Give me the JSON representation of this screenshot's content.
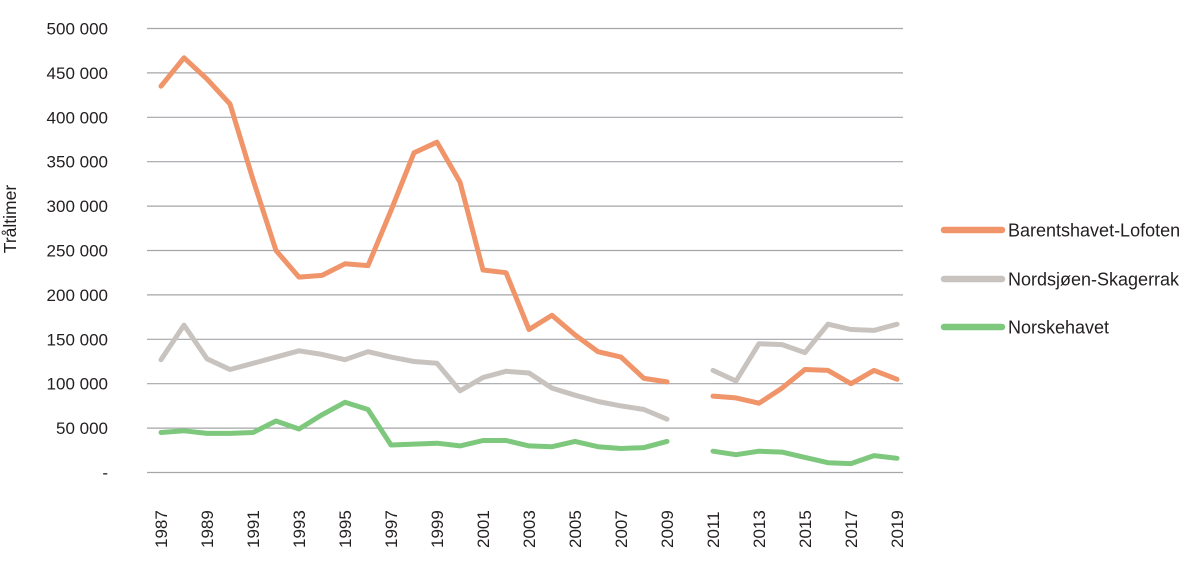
{
  "chart_data": {
    "type": "line",
    "title": "",
    "xlabel": "",
    "ylabel": "Tråltimer",
    "ylim": [
      0,
      500000
    ],
    "grid": "horizontal",
    "legend_position": "right",
    "data_gap_year": 2010,
    "x": [
      1987,
      1988,
      1989,
      1990,
      1991,
      1992,
      1993,
      1994,
      1995,
      1996,
      1997,
      1998,
      1999,
      2000,
      2001,
      2002,
      2003,
      2004,
      2005,
      2006,
      2007,
      2008,
      2009,
      2010,
      2011,
      2012,
      2013,
      2014,
      2015,
      2016,
      2017,
      2018,
      2019
    ],
    "x_tick_labels": [
      "1987",
      "1989",
      "1991",
      "1993",
      "1995",
      "1997",
      "1999",
      "2001",
      "2003",
      "2005",
      "2007",
      "2009",
      "2011",
      "2013",
      "2015",
      "2017",
      "2019"
    ],
    "y_ticks": [
      {
        "label": "500 000",
        "value": 500000
      },
      {
        "label": "450 000",
        "value": 450000
      },
      {
        "label": "400 000",
        "value": 400000
      },
      {
        "label": "350 000",
        "value": 350000
      },
      {
        "label": "300 000",
        "value": 300000
      },
      {
        "label": "250 000",
        "value": 250000
      },
      {
        "label": "200 000",
        "value": 200000
      },
      {
        "label": "150 000",
        "value": 150000
      },
      {
        "label": "100 000",
        "value": 100000
      },
      {
        "label": "50 000",
        "value": 50000
      },
      {
        "label": "-",
        "value": 0
      }
    ],
    "series": [
      {
        "name": "Barentshavet-Lofoten",
        "color": "#F0946A",
        "values": [
          435000,
          467000,
          443000,
          415000,
          330000,
          250000,
          220000,
          222000,
          235000,
          233000,
          295000,
          360000,
          372000,
          327000,
          228000,
          225000,
          161000,
          177000,
          155000,
          136000,
          130000,
          106000,
          102000,
          null,
          86000,
          84000,
          78000,
          95000,
          116000,
          115000,
          100000,
          115000,
          105000
        ]
      },
      {
        "name": "Nordsjøen-Skagerrak",
        "color": "#C8C3BF",
        "values": [
          127000,
          166000,
          128000,
          116000,
          123000,
          130000,
          137000,
          133000,
          127000,
          136000,
          130000,
          125000,
          123000,
          92000,
          107000,
          114000,
          112000,
          95000,
          87000,
          80000,
          75000,
          71000,
          60000,
          null,
          115000,
          103000,
          145000,
          144000,
          135000,
          167000,
          161000,
          160000,
          167000
        ]
      },
      {
        "name": "Norskehavet",
        "color": "#7EC87D",
        "values": [
          45000,
          47000,
          44000,
          44000,
          45000,
          58000,
          49000,
          65000,
          79000,
          71000,
          31000,
          32000,
          33000,
          30000,
          36000,
          36000,
          30000,
          29000,
          35000,
          29000,
          27000,
          28000,
          35000,
          null,
          24000,
          20000,
          24000,
          23000,
          17000,
          11000,
          10000,
          19000,
          16000
        ]
      }
    ],
    "style": {
      "gridline_color": "#A4A6A9",
      "text_color": "#231F20",
      "line_width": 5
    }
  }
}
